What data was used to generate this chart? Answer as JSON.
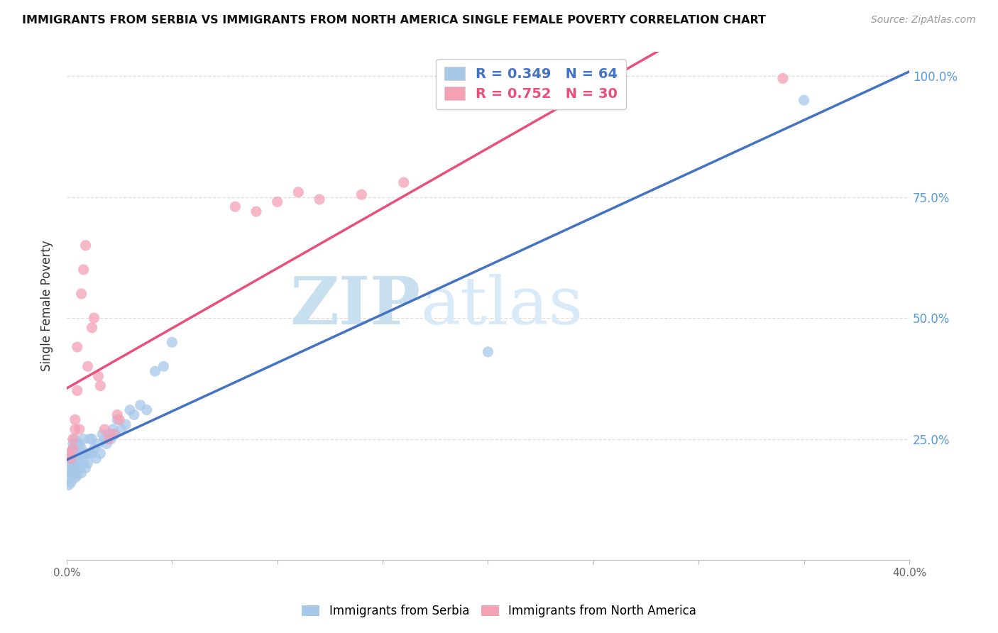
{
  "title": "IMMIGRANTS FROM SERBIA VS IMMIGRANTS FROM NORTH AMERICA SINGLE FEMALE POVERTY CORRELATION CHART",
  "source": "Source: ZipAtlas.com",
  "ylabel_left": "Single Female Poverty",
  "xlim": [
    0.0,
    0.4
  ],
  "ylim": [
    0.0,
    1.05
  ],
  "serbia_color": "#a8c8ea",
  "north_america_color": "#f4a0b5",
  "serbia_line_color": "#4472c4",
  "serbia_line_style": "solid",
  "north_america_line_color": "#e8507a",
  "north_america_line_style": "solid",
  "diagonal_line_color": "#aaaaaa",
  "diagonal_line_style": "dashed",
  "serbia_R": 0.349,
  "serbia_N": 64,
  "north_america_R": 0.752,
  "north_america_N": 30,
  "watermark_zip": "ZIP",
  "watermark_atlas": "atlas",
  "watermark_color_zip": "#c8dff0",
  "watermark_color_atlas": "#d8eaf8",
  "right_axis_color": "#5599dd",
  "serbia_x": [
    0.001,
    0.001,
    0.001,
    0.002,
    0.002,
    0.002,
    0.002,
    0.002,
    0.003,
    0.003,
    0.003,
    0.003,
    0.003,
    0.003,
    0.004,
    0.004,
    0.004,
    0.004,
    0.004,
    0.005,
    0.005,
    0.005,
    0.005,
    0.005,
    0.006,
    0.006,
    0.006,
    0.007,
    0.007,
    0.007,
    0.008,
    0.008,
    0.008,
    0.009,
    0.009,
    0.01,
    0.01,
    0.011,
    0.011,
    0.012,
    0.012,
    0.013,
    0.014,
    0.015,
    0.016,
    0.017,
    0.018,
    0.019,
    0.02,
    0.021,
    0.022,
    0.023,
    0.024,
    0.026,
    0.028,
    0.03,
    0.032,
    0.035,
    0.038,
    0.042,
    0.046,
    0.05,
    0.2,
    0.35
  ],
  "serbia_y": [
    0.155,
    0.17,
    0.19,
    0.16,
    0.18,
    0.2,
    0.22,
    0.21,
    0.175,
    0.19,
    0.2,
    0.21,
    0.23,
    0.24,
    0.17,
    0.19,
    0.21,
    0.22,
    0.25,
    0.175,
    0.19,
    0.21,
    0.22,
    0.24,
    0.19,
    0.22,
    0.24,
    0.18,
    0.2,
    0.23,
    0.2,
    0.22,
    0.25,
    0.19,
    0.22,
    0.2,
    0.22,
    0.22,
    0.25,
    0.22,
    0.25,
    0.23,
    0.21,
    0.24,
    0.22,
    0.26,
    0.25,
    0.24,
    0.26,
    0.25,
    0.27,
    0.26,
    0.29,
    0.27,
    0.28,
    0.31,
    0.3,
    0.32,
    0.31,
    0.39,
    0.4,
    0.45,
    0.43,
    0.95
  ],
  "north_america_x": [
    0.001,
    0.002,
    0.003,
    0.003,
    0.004,
    0.004,
    0.005,
    0.005,
    0.006,
    0.007,
    0.008,
    0.009,
    0.01,
    0.012,
    0.013,
    0.015,
    0.016,
    0.018,
    0.02,
    0.022,
    0.024,
    0.025,
    0.08,
    0.09,
    0.1,
    0.11,
    0.12,
    0.14,
    0.16,
    0.34
  ],
  "north_america_y": [
    0.22,
    0.21,
    0.23,
    0.25,
    0.29,
    0.27,
    0.35,
    0.44,
    0.27,
    0.55,
    0.6,
    0.65,
    0.4,
    0.48,
    0.5,
    0.38,
    0.36,
    0.27,
    0.25,
    0.26,
    0.3,
    0.29,
    0.73,
    0.72,
    0.74,
    0.76,
    0.745,
    0.755,
    0.78,
    0.995
  ],
  "background_color": "#ffffff",
  "grid_color": "#dddddd"
}
